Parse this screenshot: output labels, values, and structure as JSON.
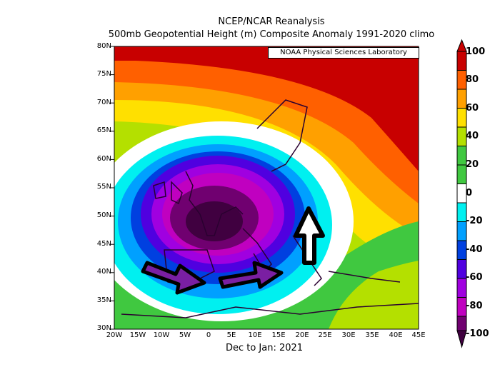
{
  "header": {
    "line1": "NCEP/NCAR Reanalysis",
    "line2": "500mb Geopotential Height (m) Composite Anomaly 1991-2020 climo"
  },
  "badge": "NOAA Physical Sciences Laboratory",
  "footer": "Dec to Jan: 2021",
  "lat_labels": [
    "80N",
    "75N",
    "70N",
    "65N",
    "60N",
    "55N",
    "50N",
    "45N",
    "40N",
    "35N",
    "30N"
  ],
  "lon_labels": [
    "20W",
    "15W",
    "10W",
    "5W",
    "0",
    "5E",
    "10E",
    "15E",
    "20E",
    "25E",
    "30E",
    "35E",
    "40E",
    "45E"
  ],
  "colorbar": {
    "labels": [
      "100",
      "80",
      "60",
      "40",
      "20",
      "0",
      "-20",
      "-40",
      "-60",
      "-80",
      "-100"
    ],
    "colors": [
      "#c80000",
      "#ff6000",
      "#ffa000",
      "#ffe000",
      "#b4e000",
      "#40c840",
      "#ffffff",
      "#00f0f0",
      "#00a0ff",
      "#0040e0",
      "#5000e0",
      "#a000e0",
      "#c000c0",
      "#700070",
      "#400040"
    ]
  },
  "annotations": {
    "arrows": [
      "right-arrow",
      "right-arrow",
      "up-arrow"
    ],
    "arrow_color": "#7a1fa2"
  }
}
